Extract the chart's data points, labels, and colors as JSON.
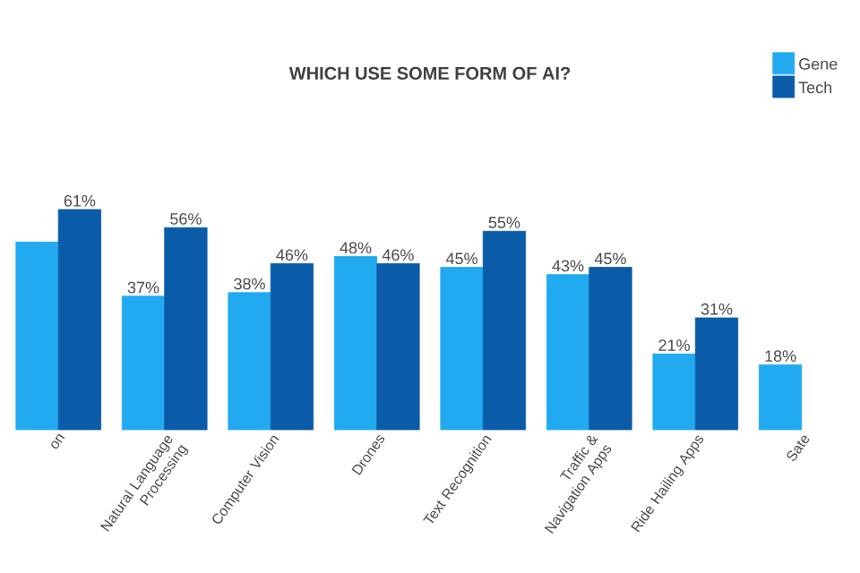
{
  "chart_data": {
    "type": "bar",
    "title": "WHICH USE SOME FORM OF AI?",
    "categories": [
      "on",
      "Natural Language Processing",
      "Computer Vision",
      "Drones",
      "Text Recognition",
      "Traffic & Navigation Apps",
      "Ride Hailing Apps",
      "Sate"
    ],
    "series": [
      {
        "name": "Gene",
        "color": "#22aaf0",
        "values": [
          52,
          37,
          38,
          48,
          45,
          43,
          21,
          18
        ],
        "value_labels": [
          null,
          "37%",
          "38%",
          "48%",
          "45%",
          "43%",
          "21%",
          "18%"
        ]
      },
      {
        "name": "Tech",
        "color": "#0a5ca8",
        "values": [
          61,
          56,
          46,
          46,
          55,
          45,
          31,
          null
        ],
        "value_labels": [
          "61%",
          "56%",
          "46%",
          "46%",
          "55%",
          "45%",
          "31%",
          null
        ]
      }
    ],
    "legend": "top right"
  }
}
